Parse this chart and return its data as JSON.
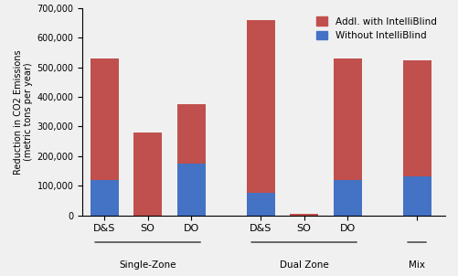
{
  "groups": [
    {
      "label": "D&S",
      "group": "Single-Zone"
    },
    {
      "label": "SO",
      "group": "Single-Zone"
    },
    {
      "label": "DO",
      "group": "Single-Zone"
    },
    {
      "label": "D&S",
      "group": "Dual Zone"
    },
    {
      "label": "SO",
      "group": "Dual Zone"
    },
    {
      "label": "DO",
      "group": "Dual Zone"
    },
    {
      "label": "",
      "group": "Mix"
    }
  ],
  "without_intelliblind": [
    120000,
    0,
    175000,
    75000,
    0,
    120000,
    130000
  ],
  "addl_intelliblind": [
    410000,
    280000,
    200000,
    585000,
    5000,
    410000,
    395000
  ],
  "color_without": "#4472C4",
  "color_addl": "#C0504D",
  "ylabel": "Reduction in CO2 Emissions\n(metric tons per year)",
  "ylim": [
    0,
    700000
  ],
  "yticks": [
    0,
    100000,
    200000,
    300000,
    400000,
    500000,
    600000,
    700000
  ],
  "ytick_labels": [
    "0",
    "100,000",
    "200,000",
    "300,000",
    "400,000",
    "500,000",
    "600,000",
    "700,000"
  ],
  "legend_addl": "Addl. with IntelliBlind",
  "legend_without": "Without IntelliBlind",
  "group_labels": [
    "Single-Zone",
    "Dual Zone",
    "Mix"
  ],
  "group_bar_indices": [
    [
      0,
      1,
      2
    ],
    [
      3,
      4,
      5
    ],
    [
      6
    ]
  ],
  "x_positions": [
    0,
    1,
    2,
    3.6,
    4.6,
    5.6,
    7.2
  ],
  "xlim": [
    -0.5,
    7.85
  ],
  "bar_width": 0.65,
  "background_color": "#f0f0f0"
}
